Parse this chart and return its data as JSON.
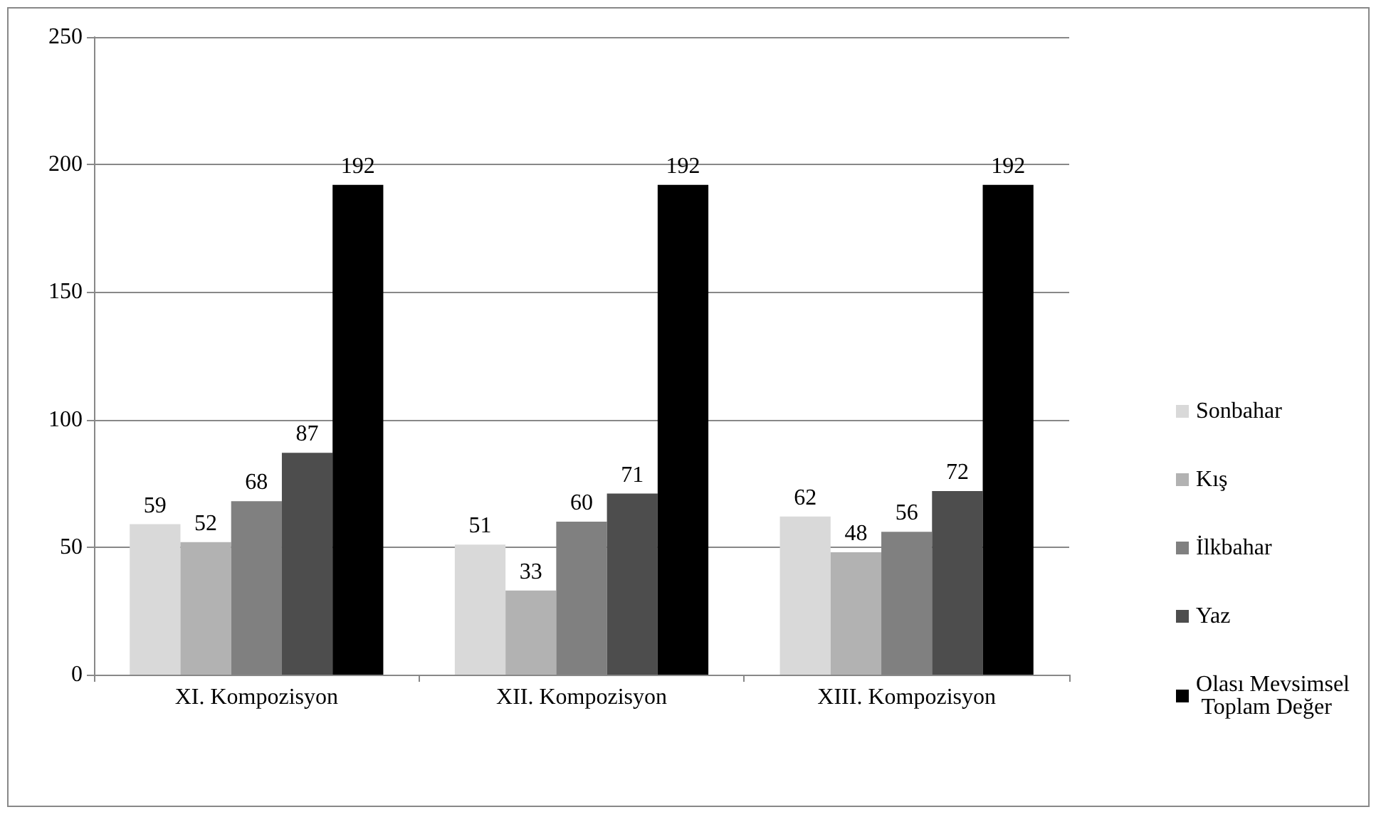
{
  "chart_data": {
    "type": "bar",
    "categories": [
      "XI. Kompozisyon",
      "XII. Kompozisyon",
      "XIII. Kompozisyon"
    ],
    "series": [
      {
        "name": "Sonbahar",
        "color": "#d9d9d9",
        "values": [
          59,
          51,
          62
        ]
      },
      {
        "name": "Kış",
        "color": "#b2b2b2",
        "values": [
          52,
          33,
          48
        ]
      },
      {
        "name": "İlkbahar",
        "color": "#808080",
        "values": [
          68,
          60,
          56
        ]
      },
      {
        "name": "Yaz",
        "color": "#4d4d4d",
        "values": [
          87,
          71,
          72
        ]
      },
      {
        "name": "Olası Mevsimsel Toplam Değer",
        "color": "#000000",
        "values": [
          192,
          192,
          192
        ]
      }
    ],
    "ylim": [
      0,
      250
    ],
    "yticks": [
      0,
      50,
      100,
      150,
      200,
      250
    ],
    "grid": "y",
    "legend": "right",
    "data_labels": true
  }
}
